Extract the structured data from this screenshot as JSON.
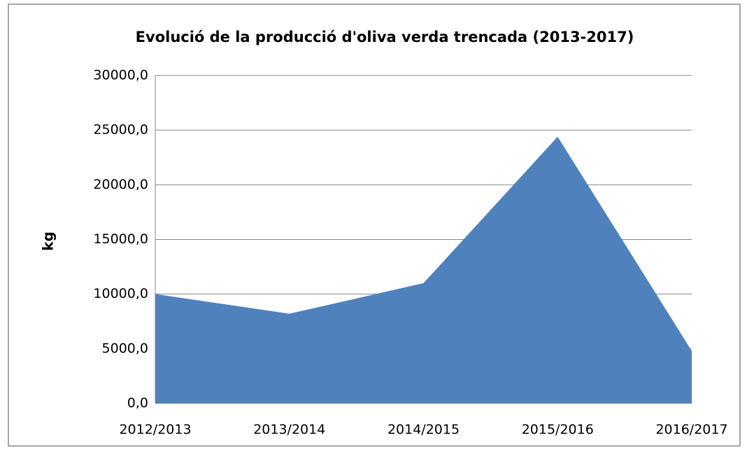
{
  "chart_data": {
    "type": "area",
    "title": "Evolució de la producció d'oliva verda trencada (2013-2017)",
    "ylabel": "kg",
    "categories": [
      "2012/2013",
      "2013/2014",
      "2014/2015",
      "2015/2016",
      "2016/2017"
    ],
    "values": [
      10000,
      8200,
      11000,
      24400,
      4800
    ],
    "color": "#4f81bd",
    "ylim": [
      0,
      30000
    ],
    "yticks": [
      {
        "value": 0,
        "label": "0,0"
      },
      {
        "value": 5000,
        "label": "5000,0"
      },
      {
        "value": 10000,
        "label": "10000,0"
      },
      {
        "value": 15000,
        "label": "15000,0"
      },
      {
        "value": 20000,
        "label": "20000,0"
      },
      {
        "value": 25000,
        "label": "25000,0"
      },
      {
        "value": 30000,
        "label": "30000,0"
      }
    ],
    "grid": true
  }
}
